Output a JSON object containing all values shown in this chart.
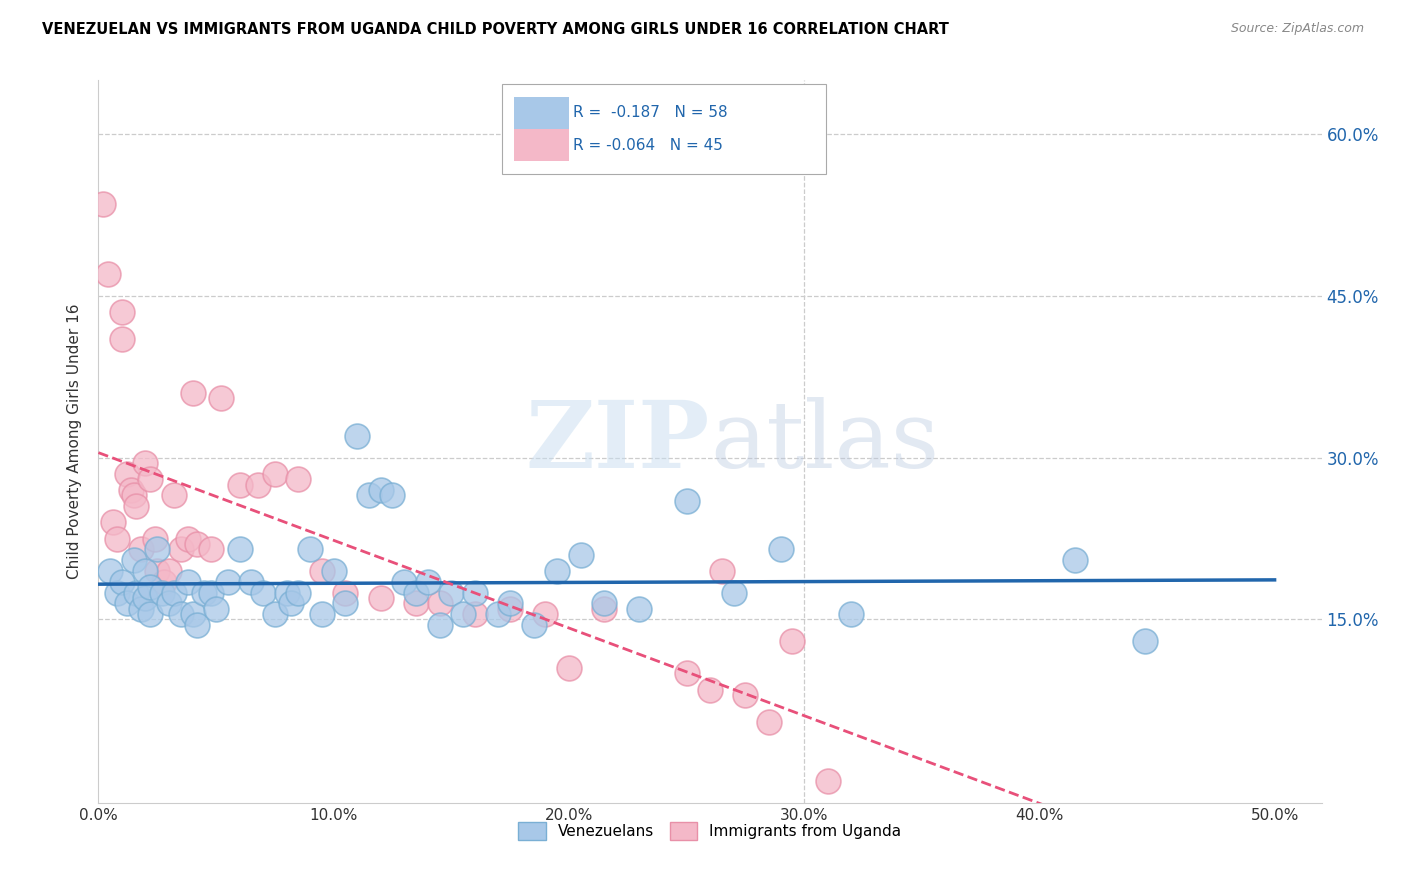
{
  "title": "VENEZUELAN VS IMMIGRANTS FROM UGANDA CHILD POVERTY AMONG GIRLS UNDER 16 CORRELATION CHART",
  "source": "Source: ZipAtlas.com",
  "ylabel": "Child Poverty Among Girls Under 16",
  "xlim": [
    0.0,
    0.52
  ],
  "ylim": [
    -0.02,
    0.65
  ],
  "xtick_labels": [
    "0.0%",
    "10.0%",
    "20.0%",
    "30.0%",
    "40.0%",
    "50.0%"
  ],
  "xtick_vals": [
    0.0,
    0.1,
    0.2,
    0.3,
    0.4,
    0.5
  ],
  "ytick_vals_right": [
    0.15,
    0.3,
    0.45,
    0.6
  ],
  "ytick_labels_right": [
    "15.0%",
    "30.0%",
    "45.0%",
    "60.0%"
  ],
  "legend_labels": [
    "Venezuelans",
    "Immigrants from Uganda"
  ],
  "blue_R": "-0.187",
  "blue_N": "58",
  "pink_R": "-0.064",
  "pink_N": "45",
  "blue_color": "#a8c8e8",
  "pink_color": "#f4b8c8",
  "blue_edge_color": "#7aafd4",
  "pink_edge_color": "#e890a8",
  "blue_line_color": "#2166ac",
  "pink_line_color": "#e8507a",
  "watermark_color": "#c8ddf0",
  "background_color": "#ffffff",
  "blue_x": [
    0.005,
    0.008,
    0.01,
    0.012,
    0.015,
    0.016,
    0.018,
    0.02,
    0.02,
    0.022,
    0.022,
    0.025,
    0.027,
    0.03,
    0.032,
    0.035,
    0.038,
    0.04,
    0.042,
    0.045,
    0.048,
    0.05,
    0.055,
    0.06,
    0.065,
    0.07,
    0.075,
    0.08,
    0.082,
    0.085,
    0.09,
    0.095,
    0.1,
    0.105,
    0.11,
    0.115,
    0.12,
    0.125,
    0.13,
    0.135,
    0.14,
    0.145,
    0.15,
    0.155,
    0.16,
    0.17,
    0.175,
    0.185,
    0.195,
    0.205,
    0.215,
    0.23,
    0.25,
    0.27,
    0.29,
    0.32,
    0.415,
    0.445
  ],
  "blue_y": [
    0.195,
    0.175,
    0.185,
    0.165,
    0.205,
    0.175,
    0.16,
    0.195,
    0.17,
    0.18,
    0.155,
    0.215,
    0.175,
    0.165,
    0.175,
    0.155,
    0.185,
    0.155,
    0.145,
    0.175,
    0.175,
    0.16,
    0.185,
    0.215,
    0.185,
    0.175,
    0.155,
    0.175,
    0.165,
    0.175,
    0.215,
    0.155,
    0.195,
    0.165,
    0.32,
    0.265,
    0.27,
    0.265,
    0.185,
    0.175,
    0.185,
    0.145,
    0.175,
    0.155,
    0.175,
    0.155,
    0.165,
    0.145,
    0.195,
    0.21,
    0.165,
    0.16,
    0.26,
    0.175,
    0.215,
    0.155,
    0.205,
    0.13
  ],
  "pink_x": [
    0.002,
    0.004,
    0.006,
    0.008,
    0.01,
    0.01,
    0.012,
    0.014,
    0.015,
    0.016,
    0.018,
    0.02,
    0.022,
    0.024,
    0.025,
    0.028,
    0.03,
    0.032,
    0.035,
    0.038,
    0.04,
    0.042,
    0.048,
    0.052,
    0.06,
    0.068,
    0.075,
    0.085,
    0.095,
    0.105,
    0.12,
    0.135,
    0.145,
    0.16,
    0.175,
    0.19,
    0.2,
    0.215,
    0.25,
    0.26,
    0.265,
    0.275,
    0.285,
    0.295,
    0.31
  ],
  "pink_y": [
    0.535,
    0.47,
    0.24,
    0.225,
    0.435,
    0.41,
    0.285,
    0.27,
    0.265,
    0.255,
    0.215,
    0.295,
    0.28,
    0.225,
    0.195,
    0.185,
    0.195,
    0.265,
    0.215,
    0.225,
    0.36,
    0.22,
    0.215,
    0.355,
    0.275,
    0.275,
    0.285,
    0.28,
    0.195,
    0.175,
    0.17,
    0.165,
    0.165,
    0.155,
    0.16,
    0.155,
    0.105,
    0.16,
    0.1,
    0.085,
    0.195,
    0.08,
    0.055,
    0.13,
    0.0
  ]
}
